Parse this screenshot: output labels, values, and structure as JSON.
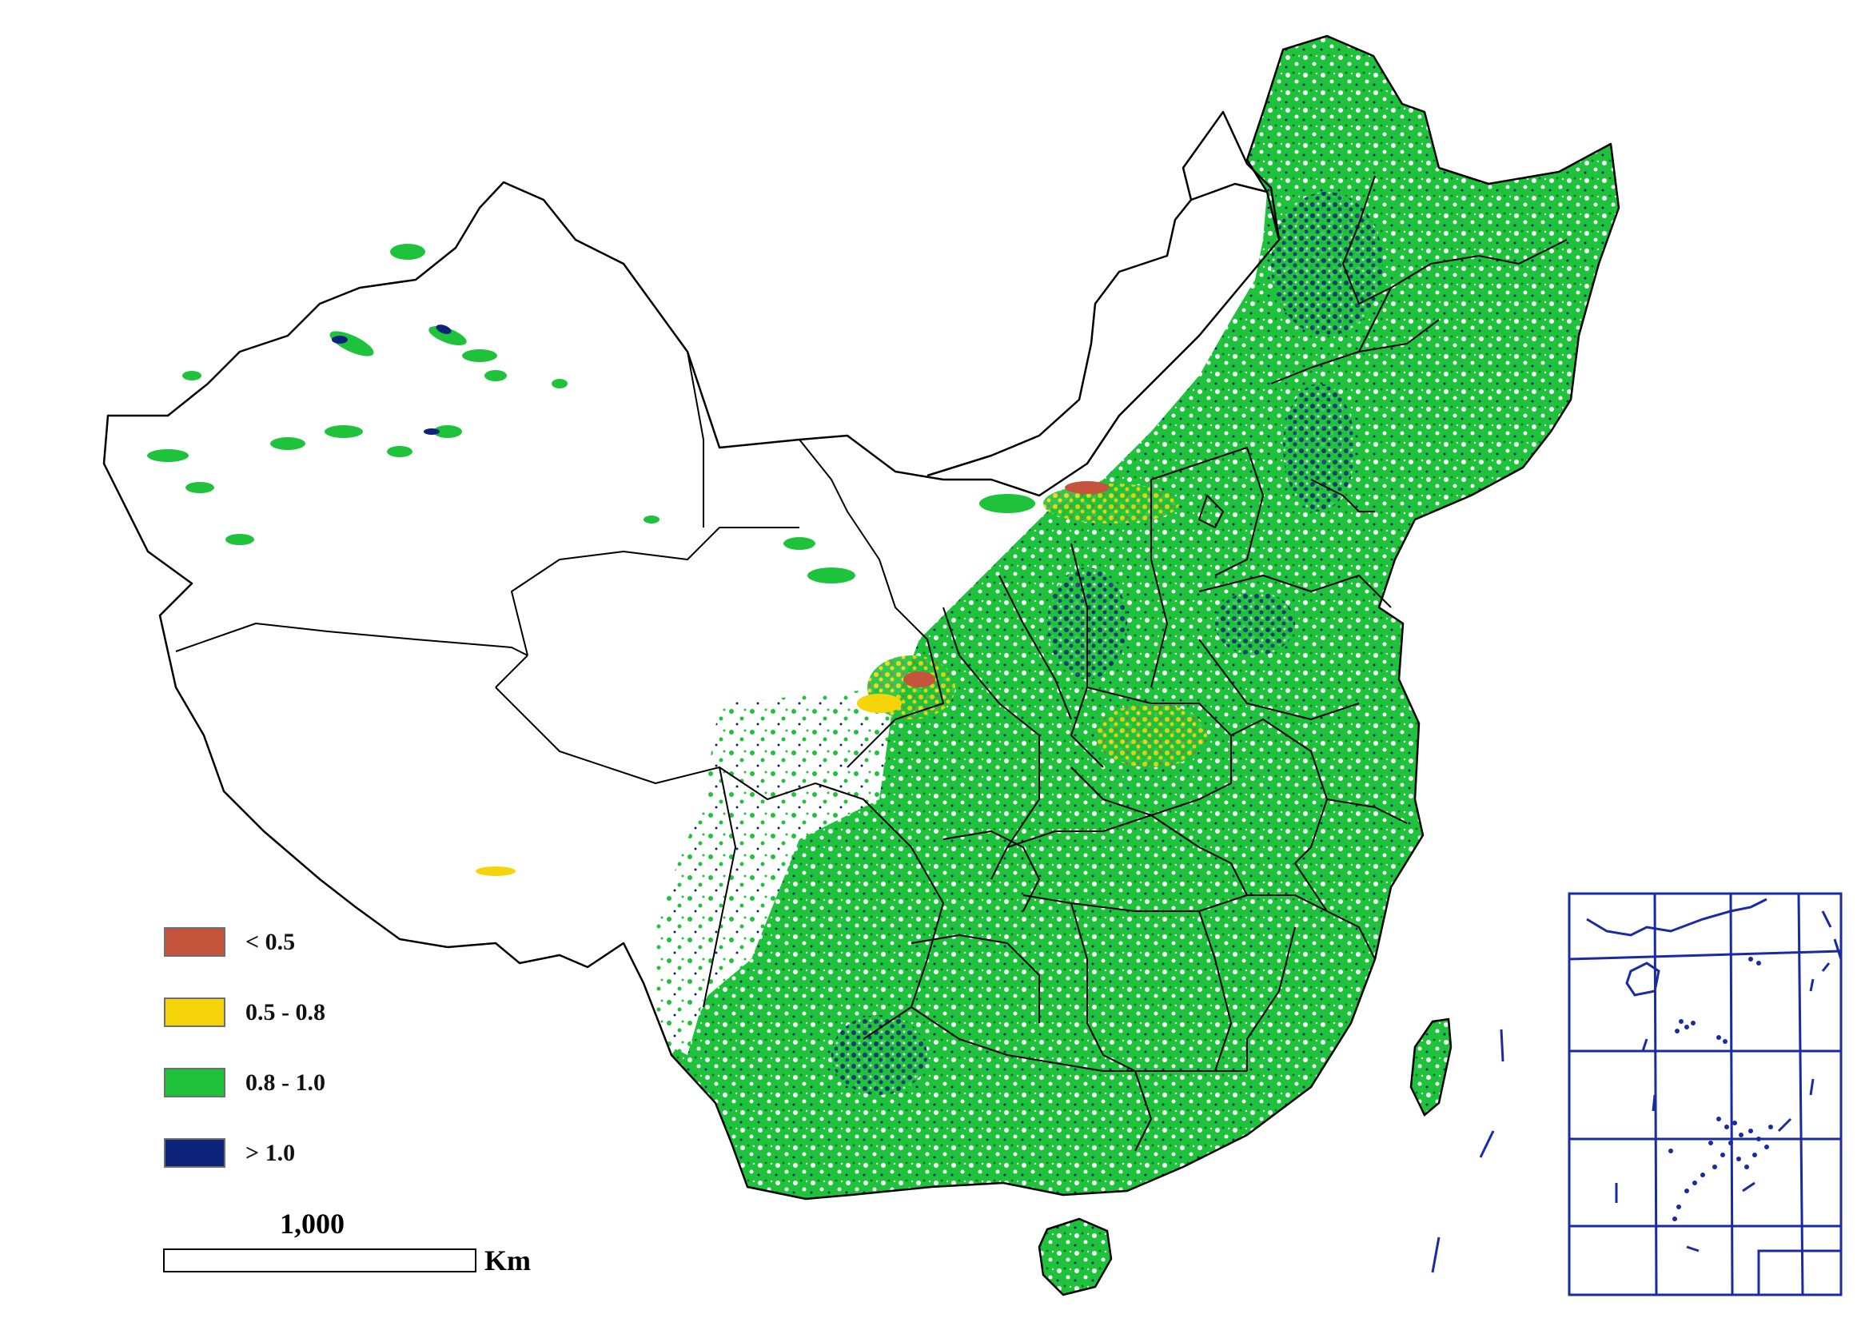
{
  "legend": {
    "title": "",
    "items": [
      {
        "label": "< 0.5",
        "color": "#c4553c"
      },
      {
        "label": "0.5 - 0.8",
        "color": "#f5d40a"
      },
      {
        "label": "0.8 - 1.0",
        "color": "#1fc23b"
      },
      {
        "label": "> 1.0",
        "color": "#0b247a"
      }
    ]
  },
  "scale_bar": {
    "value": "1,000",
    "unit": "Km"
  },
  "colors": {
    "boundary": "#000000",
    "inset_frame": "#1a2aa5",
    "background": "#ffffff"
  },
  "inset": {
    "name": "South China Sea islands inset"
  }
}
